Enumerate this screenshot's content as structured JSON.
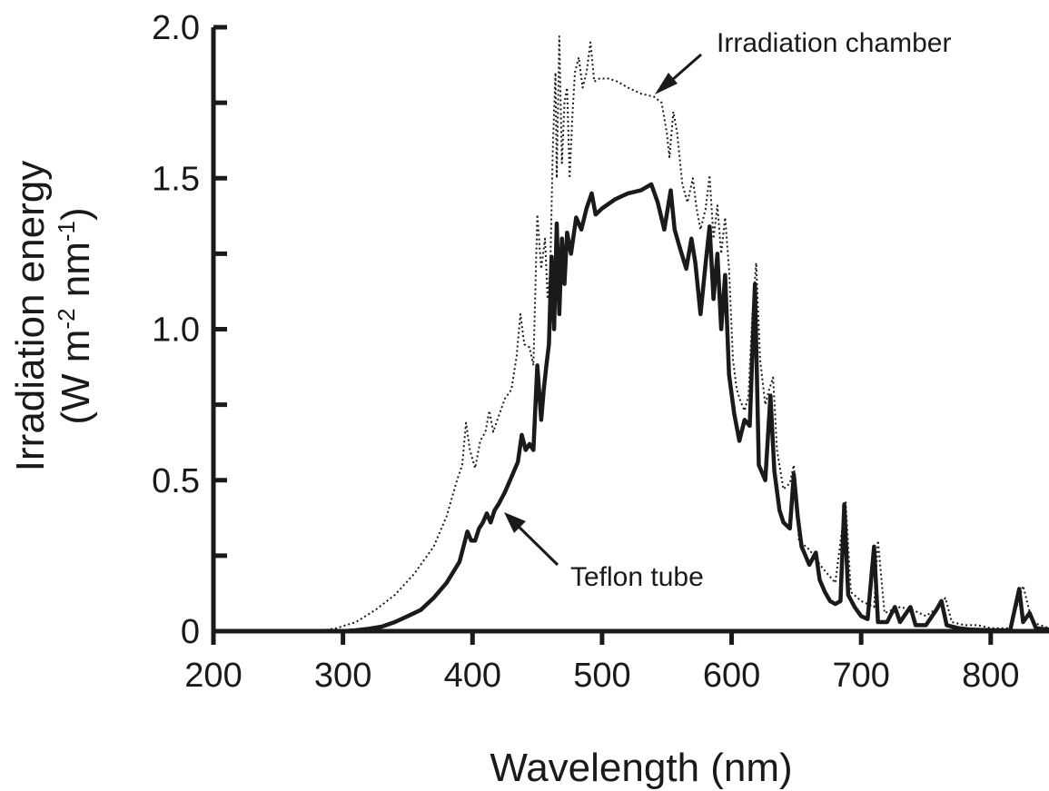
{
  "chart_data": {
    "type": "line",
    "title": "",
    "xlabel": "Wavelength (nm)",
    "ylabel_line1": "Irradiation energy",
    "ylabel_line2": {
      "pre": "(W m",
      "sup1": "-2",
      "mid": " nm",
      "sup2": "-1",
      "post": ")"
    },
    "xlim": [
      200,
      845
    ],
    "ylim": [
      0,
      2.0
    ],
    "x_ticks": [
      200,
      300,
      400,
      500,
      600,
      700,
      800
    ],
    "x_tick_labels": [
      "200",
      "300",
      "400",
      "500",
      "600",
      "700",
      "800"
    ],
    "y_ticks": [
      0,
      0.5,
      1.0,
      1.5,
      2.0
    ],
    "y_tick_labels": [
      "0",
      "0.5",
      "1.0",
      "1.5",
      "2.0"
    ],
    "y_minor_ticks": [
      0.25,
      0.75,
      1.25,
      1.75
    ],
    "grid": false,
    "series": [
      {
        "name": "Irradiation chamber",
        "style": "dotted",
        "color": "#1a1a1a",
        "points": [
          [
            280,
            0
          ],
          [
            295,
            0.01
          ],
          [
            310,
            0.03
          ],
          [
            325,
            0.07
          ],
          [
            340,
            0.12
          ],
          [
            355,
            0.19
          ],
          [
            370,
            0.28
          ],
          [
            380,
            0.38
          ],
          [
            388,
            0.5
          ],
          [
            392,
            0.55
          ],
          [
            395,
            0.69
          ],
          [
            398,
            0.6
          ],
          [
            402,
            0.54
          ],
          [
            406,
            0.63
          ],
          [
            410,
            0.66
          ],
          [
            413,
            0.73
          ],
          [
            416,
            0.66
          ],
          [
            420,
            0.71
          ],
          [
            425,
            0.77
          ],
          [
            430,
            0.8
          ],
          [
            434,
            0.91
          ],
          [
            437,
            1.05
          ],
          [
            440,
            0.95
          ],
          [
            444,
            0.94
          ],
          [
            447,
            0.88
          ],
          [
            450,
            1.38
          ],
          [
            453,
            1.2
          ],
          [
            456,
            1.3
          ],
          [
            458,
            1.1
          ],
          [
            460,
            1.2
          ],
          [
            462,
            1.6
          ],
          [
            464,
            1.85
          ],
          [
            465,
            1.5
          ],
          [
            467,
            1.97
          ],
          [
            469,
            1.55
          ],
          [
            471,
            1.75
          ],
          [
            473,
            1.8
          ],
          [
            475,
            1.5
          ],
          [
            477,
            1.7
          ],
          [
            479,
            1.85
          ],
          [
            482,
            1.9
          ],
          [
            485,
            1.8
          ],
          [
            488,
            1.85
          ],
          [
            491,
            1.95
          ],
          [
            494,
            1.82
          ],
          [
            498,
            1.83
          ],
          [
            505,
            1.83
          ],
          [
            512,
            1.82
          ],
          [
            520,
            1.8
          ],
          [
            530,
            1.78
          ],
          [
            540,
            1.77
          ],
          [
            546,
            1.75
          ],
          [
            550,
            1.65
          ],
          [
            552,
            1.57
          ],
          [
            555,
            1.72
          ],
          [
            558,
            1.65
          ],
          [
            562,
            1.48
          ],
          [
            566,
            1.42
          ],
          [
            570,
            1.5
          ],
          [
            573,
            1.4
          ],
          [
            576,
            1.33
          ],
          [
            580,
            1.4
          ],
          [
            583,
            1.51
          ],
          [
            586,
            1.3
          ],
          [
            589,
            1.41
          ],
          [
            592,
            1.25
          ],
          [
            595,
            1.37
          ],
          [
            598,
            1.2
          ],
          [
            601,
            0.9
          ],
          [
            604,
            0.8
          ],
          [
            607,
            0.76
          ],
          [
            610,
            0.73
          ],
          [
            613,
            0.78
          ],
          [
            616,
            1.05
          ],
          [
            619,
            1.22
          ],
          [
            622,
            0.9
          ],
          [
            626,
            0.75
          ],
          [
            629,
            0.8
          ],
          [
            632,
            0.84
          ],
          [
            635,
            0.6
          ],
          [
            640,
            0.47
          ],
          [
            645,
            0.49
          ],
          [
            648,
            0.55
          ],
          [
            652,
            0.3
          ],
          [
            660,
            0.27
          ],
          [
            670,
            0.21
          ],
          [
            680,
            0.16
          ],
          [
            688,
            0.43
          ],
          [
            692,
            0.13
          ],
          [
            700,
            0.1
          ],
          [
            710,
            0.08
          ],
          [
            713,
            0.3
          ],
          [
            718,
            0.06
          ],
          [
            730,
            0.08
          ],
          [
            740,
            0.07
          ],
          [
            750,
            0.05
          ],
          [
            760,
            0.08
          ],
          [
            765,
            0.11
          ],
          [
            770,
            0.03
          ],
          [
            780,
            0.02
          ],
          [
            790,
            0.02
          ],
          [
            800,
            0.01
          ],
          [
            815,
            0.01
          ],
          [
            825,
            0.15
          ],
          [
            832,
            0.03
          ],
          [
            845,
            0.01
          ]
        ]
      },
      {
        "name": "Teflon tube",
        "style": "solid",
        "color": "#1a1a1a",
        "points": [
          [
            300,
            0
          ],
          [
            310,
            0.003
          ],
          [
            320,
            0.008
          ],
          [
            330,
            0.015
          ],
          [
            340,
            0.03
          ],
          [
            350,
            0.05
          ],
          [
            360,
            0.07
          ],
          [
            370,
            0.11
          ],
          [
            380,
            0.16
          ],
          [
            390,
            0.23
          ],
          [
            393,
            0.28
          ],
          [
            396,
            0.33
          ],
          [
            399,
            0.3
          ],
          [
            402,
            0.3
          ],
          [
            405,
            0.34
          ],
          [
            408,
            0.36
          ],
          [
            411,
            0.39
          ],
          [
            414,
            0.36
          ],
          [
            417,
            0.4
          ],
          [
            420,
            0.42
          ],
          [
            425,
            0.46
          ],
          [
            430,
            0.51
          ],
          [
            435,
            0.56
          ],
          [
            438,
            0.65
          ],
          [
            441,
            0.6
          ],
          [
            444,
            0.62
          ],
          [
            447,
            0.6
          ],
          [
            450,
            0.88
          ],
          [
            453,
            0.7
          ],
          [
            455,
            0.8
          ],
          [
            457,
            0.88
          ],
          [
            459,
            0.95
          ],
          [
            461,
            1.24
          ],
          [
            463,
            1.0
          ],
          [
            465,
            1.35
          ],
          [
            467,
            1.05
          ],
          [
            469,
            1.3
          ],
          [
            471,
            1.15
          ],
          [
            473,
            1.32
          ],
          [
            476,
            1.25
          ],
          [
            480,
            1.37
          ],
          [
            484,
            1.33
          ],
          [
            488,
            1.4
          ],
          [
            492,
            1.45
          ],
          [
            495,
            1.38
          ],
          [
            500,
            1.4
          ],
          [
            510,
            1.43
          ],
          [
            520,
            1.45
          ],
          [
            530,
            1.46
          ],
          [
            538,
            1.48
          ],
          [
            543,
            1.42
          ],
          [
            548,
            1.33
          ],
          [
            553,
            1.46
          ],
          [
            556,
            1.33
          ],
          [
            560,
            1.27
          ],
          [
            565,
            1.2
          ],
          [
            569,
            1.3
          ],
          [
            572,
            1.22
          ],
          [
            576,
            1.05
          ],
          [
            580,
            1.22
          ],
          [
            583,
            1.34
          ],
          [
            586,
            1.1
          ],
          [
            589,
            1.25
          ],
          [
            592,
            1.0
          ],
          [
            595,
            1.18
          ],
          [
            598,
            0.85
          ],
          [
            602,
            0.72
          ],
          [
            606,
            0.63
          ],
          [
            610,
            0.7
          ],
          [
            614,
            0.68
          ],
          [
            618,
            1.15
          ],
          [
            621,
            0.55
          ],
          [
            626,
            0.5
          ],
          [
            630,
            0.78
          ],
          [
            633,
            0.53
          ],
          [
            637,
            0.4
          ],
          [
            640,
            0.36
          ],
          [
            645,
            0.34
          ],
          [
            648,
            0.52
          ],
          [
            651,
            0.38
          ],
          [
            654,
            0.28
          ],
          [
            660,
            0.22
          ],
          [
            665,
            0.26
          ],
          [
            668,
            0.17
          ],
          [
            672,
            0.13
          ],
          [
            676,
            0.1
          ],
          [
            680,
            0.09
          ],
          [
            684,
            0.1
          ],
          [
            687,
            0.42
          ],
          [
            690,
            0.12
          ],
          [
            695,
            0.08
          ],
          [
            700,
            0.05
          ],
          [
            705,
            0.04
          ],
          [
            710,
            0.28
          ],
          [
            713,
            0.03
          ],
          [
            720,
            0.03
          ],
          [
            726,
            0.08
          ],
          [
            730,
            0.03
          ],
          [
            738,
            0.08
          ],
          [
            742,
            0.02
          ],
          [
            750,
            0.02
          ],
          [
            758,
            0.07
          ],
          [
            762,
            0.1
          ],
          [
            766,
            0.02
          ],
          [
            775,
            0.01
          ],
          [
            785,
            0.005
          ],
          [
            800,
            0.003
          ],
          [
            815,
            0.002
          ],
          [
            822,
            0.14
          ],
          [
            825,
            0.03
          ],
          [
            830,
            0.06
          ],
          [
            835,
            0.01
          ],
          [
            845,
            0.005
          ]
        ]
      }
    ],
    "annotations": [
      {
        "text": "Irradiation chamber",
        "x": 540,
        "y": 1.78,
        "side": "top-right"
      },
      {
        "text": "Teflon tube",
        "x": 420,
        "y": 0.39,
        "side": "bottom-right"
      }
    ]
  }
}
